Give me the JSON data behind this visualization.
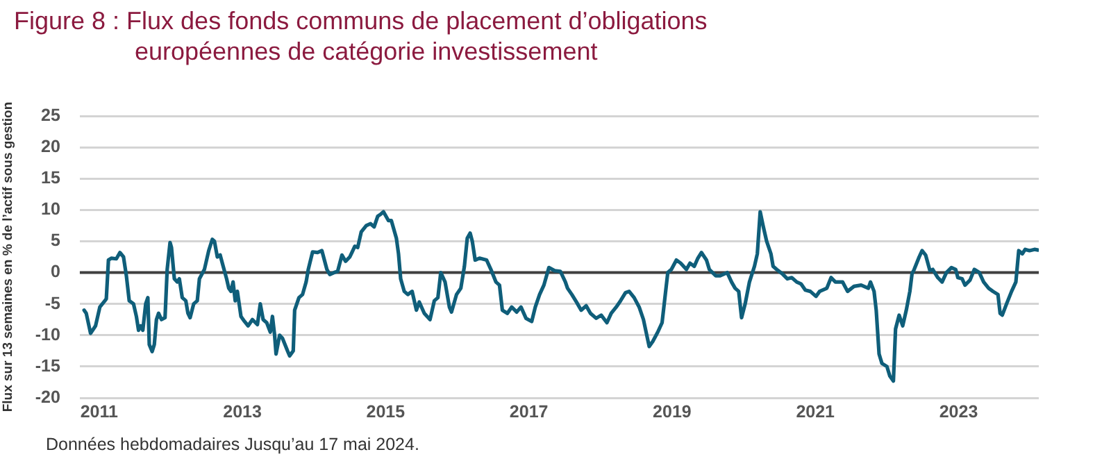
{
  "chart_data": {
    "type": "line",
    "title": "Figure 8 : Flux des fonds communs de placement d’obligations européennes de catégorie investissement",
    "ylabel": "Flux sur 13 semaines en % de l’actif sous gestion",
    "annotations": [
      "Données hebdomadaires Jusqu’au 17 mai 2024."
    ],
    "xlim": [
      2010.73,
      2024.12
    ],
    "xticks": [
      2011,
      2013,
      2015,
      2017,
      2019,
      2021,
      2023
    ],
    "ylim": [
      -20,
      25
    ],
    "yticks": [
      -20,
      -15,
      -10,
      -5,
      0,
      5,
      10,
      15,
      20,
      25
    ],
    "grid": "y",
    "legend": false,
    "marker": "none",
    "line_style": "solid",
    "ref_lines": [
      {
        "axis": "y",
        "value": 0,
        "color": "#404040"
      }
    ],
    "series": [
      {
        "color": "#0f5e7a",
        "x": [
          2010.79,
          2010.82,
          2010.88,
          2010.95,
          2011.01,
          2011.08,
          2011.1,
          2011.13,
          2011.17,
          2011.24,
          2011.29,
          2011.34,
          2011.38,
          2011.42,
          2011.48,
          2011.52,
          2011.55,
          2011.58,
          2011.61,
          2011.65,
          2011.68,
          2011.7,
          2011.74,
          2011.77,
          2011.8,
          2011.83,
          2011.87,
          2011.92,
          2011.95,
          2011.99,
          2012.01,
          2012.05,
          2012.09,
          2012.12,
          2012.16,
          2012.21,
          2012.24,
          2012.27,
          2012.32,
          2012.37,
          2012.4,
          2012.47,
          2012.53,
          2012.58,
          2012.61,
          2012.65,
          2012.69,
          2012.72,
          2012.78,
          2012.81,
          2012.84,
          2012.87,
          2012.9,
          2012.93,
          2012.98,
          2013.03,
          2013.08,
          2013.14,
          2013.21,
          2013.25,
          2013.29,
          2013.34,
          2013.39,
          2013.42,
          2013.45,
          2013.47,
          2013.52,
          2013.56,
          2013.63,
          2013.66,
          2013.71,
          2013.73,
          2013.79,
          2013.84,
          2013.89,
          2013.92,
          2013.98,
          2014.05,
          2014.11,
          2014.18,
          2014.22,
          2014.28,
          2014.33,
          2014.39,
          2014.44,
          2014.5,
          2014.57,
          2014.61,
          2014.66,
          2014.73,
          2014.79,
          2014.84,
          2014.89,
          2014.93,
          2014.97,
          2015.04,
          2015.08,
          2015.15,
          2015.18,
          2015.21,
          2015.26,
          2015.31,
          2015.37,
          2015.43,
          2015.47,
          2015.54,
          2015.62,
          2015.68,
          2015.73,
          2015.77,
          2015.83,
          2015.89,
          2015.92,
          2015.99,
          2016.05,
          2016.1,
          2016.14,
          2016.18,
          2016.21,
          2016.25,
          2016.31,
          2016.41,
          2016.47,
          2016.54,
          2016.59,
          2016.63,
          2016.7,
          2016.76,
          2016.83,
          2016.89,
          2016.96,
          2017.04,
          2017.09,
          2017.15,
          2017.21,
          2017.28,
          2017.36,
          2017.44,
          2017.51,
          2017.54,
          2017.6,
          2017.67,
          2017.73,
          2017.8,
          2017.86,
          2017.94,
          2018.01,
          2018.09,
          2018.15,
          2018.22,
          2018.28,
          2018.35,
          2018.4,
          2018.47,
          2018.54,
          2018.6,
          2018.68,
          2018.73,
          2018.8,
          2018.86,
          2018.9,
          2018.94,
          2018.99,
          2019.06,
          2019.12,
          2019.2,
          2019.25,
          2019.31,
          2019.36,
          2019.41,
          2019.48,
          2019.52,
          2019.61,
          2019.67,
          2019.77,
          2019.83,
          2019.88,
          2019.93,
          2019.97,
          2020.02,
          2020.08,
          2020.15,
          2020.19,
          2020.23,
          2020.27,
          2020.32,
          2020.38,
          2020.41,
          2020.46,
          2020.54,
          2020.61,
          2020.67,
          2020.74,
          2020.8,
          2020.86,
          2020.93,
          2021.01,
          2021.06,
          2021.16,
          2021.22,
          2021.28,
          2021.38,
          2021.45,
          2021.54,
          2021.64,
          2021.74,
          2021.77,
          2021.82,
          2021.85,
          2021.89,
          2021.93,
          2022.0,
          2022.04,
          2022.09,
          2022.12,
          2022.17,
          2022.22,
          2022.27,
          2022.32,
          2022.35,
          2022.38,
          2022.45,
          2022.49,
          2022.54,
          2022.6,
          2022.64,
          2022.71,
          2022.77,
          2022.83,
          2022.9,
          2022.96,
          2022.99,
          2023.05,
          2023.09,
          2023.16,
          2023.22,
          2023.29,
          2023.35,
          2023.42,
          2023.48,
          2023.55,
          2023.58,
          2023.61,
          2023.67,
          2023.74,
          2023.8,
          2023.84,
          2023.89,
          2023.93,
          2023.99,
          2024.06,
          2024.11
        ],
        "values": [
          -6,
          -6.5,
          -9.7,
          -8.5,
          -5.5,
          -4.5,
          -4.2,
          2,
          2.3,
          2.2,
          3.2,
          2.5,
          -0.5,
          -4.5,
          -5,
          -7,
          -9.2,
          -8.5,
          -9.2,
          -5,
          -4,
          -11.5,
          -12.6,
          -11.5,
          -7.5,
          -6.5,
          -7.5,
          -7.2,
          0.5,
          4.8,
          4,
          -1,
          -1.5,
          -1,
          -4,
          -4.5,
          -6.5,
          -7.2,
          -5,
          -4.5,
          -1,
          0.5,
          3.5,
          5.3,
          5,
          2.5,
          2.8,
          1.5,
          -1,
          -2.5,
          -3,
          -1.5,
          -4.5,
          -3,
          -7,
          -7.8,
          -8.5,
          -7.5,
          -8.3,
          -5,
          -7.5,
          -8,
          -9.5,
          -7,
          -10,
          -13,
          -10,
          -10.5,
          -12.5,
          -13.3,
          -12.5,
          -6,
          -4,
          -3.5,
          -1.5,
          0.5,
          3.3,
          3.2,
          3.5,
          0.5,
          -0.3,
          0,
          0.2,
          2.8,
          1.8,
          2.5,
          4.2,
          4,
          6.5,
          7.5,
          7.8,
          7.3,
          9,
          9.3,
          9.7,
          8.3,
          8.3,
          5.5,
          3,
          -1,
          -3,
          -3.5,
          -3,
          -6,
          -4.7,
          -6.5,
          -7.5,
          -4.5,
          -4,
          0,
          -1.5,
          -5.5,
          -6.3,
          -3.5,
          -2.5,
          1,
          5.5,
          6.3,
          5,
          2,
          2.3,
          2,
          0.5,
          -1.5,
          -2,
          -6,
          -6.5,
          -5.5,
          -6.3,
          -5.5,
          -7.3,
          -7.8,
          -5.5,
          -3.5,
          -2,
          0.8,
          0.3,
          0.2,
          -1.5,
          -2.5,
          -3.5,
          -4.8,
          -6,
          -5.3,
          -6.5,
          -7.3,
          -6.8,
          -8,
          -6.5,
          -5.5,
          -4.5,
          -3.2,
          -3,
          -4,
          -5.5,
          -7.5,
          -11.8,
          -11,
          -9.5,
          -8,
          -4,
          0,
          0.5,
          2,
          1.5,
          0.5,
          1.5,
          1,
          2.3,
          3.2,
          2,
          0.5,
          -0.5,
          -0.5,
          0,
          -1.5,
          -2.5,
          -3,
          -7.2,
          -5,
          -1.5,
          1,
          3,
          9.7,
          7.5,
          5,
          3,
          1,
          0.5,
          -0.2,
          -1,
          -0.8,
          -1.5,
          -1.8,
          -2.8,
          -3,
          -3.8,
          -3,
          -2.5,
          -0.8,
          -1.5,
          -1.5,
          -3,
          -2.2,
          -2,
          -2.5,
          -1.5,
          -3,
          -6,
          -13,
          -14.5,
          -15,
          -16.5,
          -17.3,
          -9,
          -6.8,
          -8.5,
          -6,
          -3,
          -0.2,
          0.5,
          2.5,
          3.5,
          2.8,
          0.3,
          0.5,
          -0.8,
          -1.5,
          0,
          0.8,
          0.5,
          -0.8,
          -1,
          -2,
          -1.2,
          0.5,
          0,
          -1.5,
          -2.5,
          -3,
          -3.5,
          -6.5,
          -6.8,
          -5,
          -3,
          -1.5,
          3.5,
          3,
          3.7,
          3.5,
          3.7,
          3.6
        ]
      }
    ]
  }
}
